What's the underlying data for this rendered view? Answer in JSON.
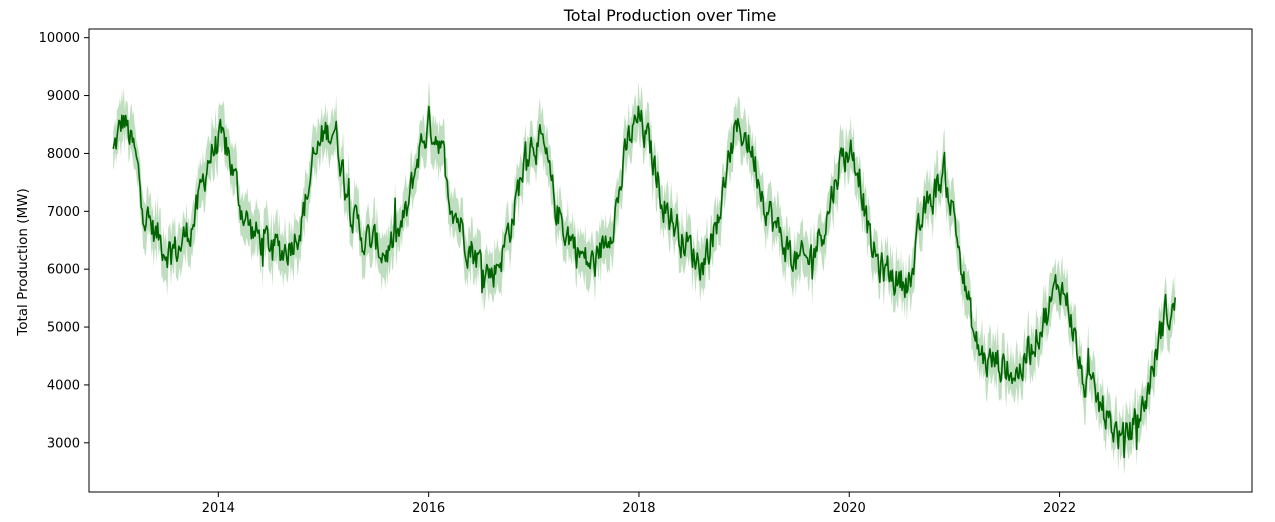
{
  "chart_data": {
    "type": "line",
    "title": "Total Production over Time",
    "xlabel": "",
    "ylabel": "Total Production (MW)",
    "xlim": [
      2012.77,
      2023.83
    ],
    "ylim": [
      2150,
      10150
    ],
    "xticks": [
      2014,
      2016,
      2018,
      2020,
      2022
    ],
    "xtick_labels": [
      "2014",
      "2016",
      "2018",
      "2020",
      "2022"
    ],
    "yticks": [
      3000,
      4000,
      5000,
      6000,
      7000,
      8000,
      9000,
      10000
    ],
    "ytick_labels": [
      "3000",
      "4000",
      "5000",
      "6000",
      "7000",
      "8000",
      "9000",
      "10000"
    ],
    "grid": false,
    "legend": "none",
    "line_color": "#006400",
    "band_color": "#a9d3a9",
    "series": [
      {
        "x": [
          2013.0,
          2013.1,
          2013.2,
          2013.3,
          2013.4,
          2013.5,
          2013.6,
          2013.7,
          2013.8,
          2013.9,
          2014.0,
          2014.1,
          2014.2,
          2014.3,
          2014.4,
          2014.5,
          2014.6,
          2014.7,
          2014.8,
          2014.9,
          2015.0,
          2015.1,
          2015.2,
          2015.3,
          2015.4,
          2015.5,
          2015.6,
          2015.7,
          2015.8,
          2015.9,
          2016.0,
          2016.1,
          2016.2,
          2016.3,
          2016.4,
          2016.5,
          2016.6,
          2016.7,
          2016.8,
          2016.9,
          2017.0,
          2017.1,
          2017.2,
          2017.3,
          2017.4,
          2017.5,
          2017.6,
          2017.7,
          2017.8,
          2017.9,
          2018.0,
          2018.1,
          2018.2,
          2018.3,
          2018.4,
          2018.5,
          2018.6,
          2018.7,
          2018.8,
          2018.9,
          2019.0,
          2019.1,
          2019.2,
          2019.3,
          2019.4,
          2019.5,
          2019.6,
          2019.7,
          2019.8,
          2019.9,
          2020.0,
          2020.1,
          2020.2,
          2020.3,
          2020.4,
          2020.5,
          2020.6,
          2020.7,
          2020.8,
          2020.9,
          2021.0,
          2021.1,
          2021.2,
          2021.3,
          2021.4,
          2021.5,
          2021.6,
          2021.7,
          2021.8,
          2021.9,
          2022.0,
          2022.1,
          2022.2,
          2022.3,
          2022.4,
          2022.5,
          2022.6,
          2022.7,
          2022.8,
          2022.9,
          2023.0,
          2023.1
        ],
        "y": [
          8000,
          8600,
          8000,
          7000,
          6600,
          6400,
          6300,
          6600,
          7000,
          7900,
          8200,
          8000,
          7200,
          6700,
          6500,
          6400,
          6300,
          6500,
          6900,
          7800,
          8300,
          8500,
          7600,
          6800,
          6500,
          6400,
          6300,
          6500,
          7000,
          8000,
          8500,
          8300,
          7300,
          6800,
          6400,
          6100,
          5900,
          6300,
          6900,
          7800,
          8300,
          8000,
          7100,
          6700,
          6400,
          6100,
          6100,
          6600,
          7200,
          8200,
          8600,
          8100,
          7400,
          6900,
          6600,
          6300,
          6100,
          6600,
          7300,
          8300,
          8400,
          7900,
          7200,
          6700,
          6400,
          6100,
          6100,
          6500,
          7000,
          7800,
          8100,
          7700,
          6400,
          6000,
          5900,
          5800,
          5900,
          6900,
          7300,
          7700,
          6900,
          5700,
          4700,
          4400,
          4400,
          4300,
          4200,
          4500,
          5000,
          5300,
          5800,
          5300,
          4200,
          3800,
          3600,
          3300,
          3000,
          3300,
          3600,
          4400,
          5200,
          5300
        ]
      }
    ]
  }
}
